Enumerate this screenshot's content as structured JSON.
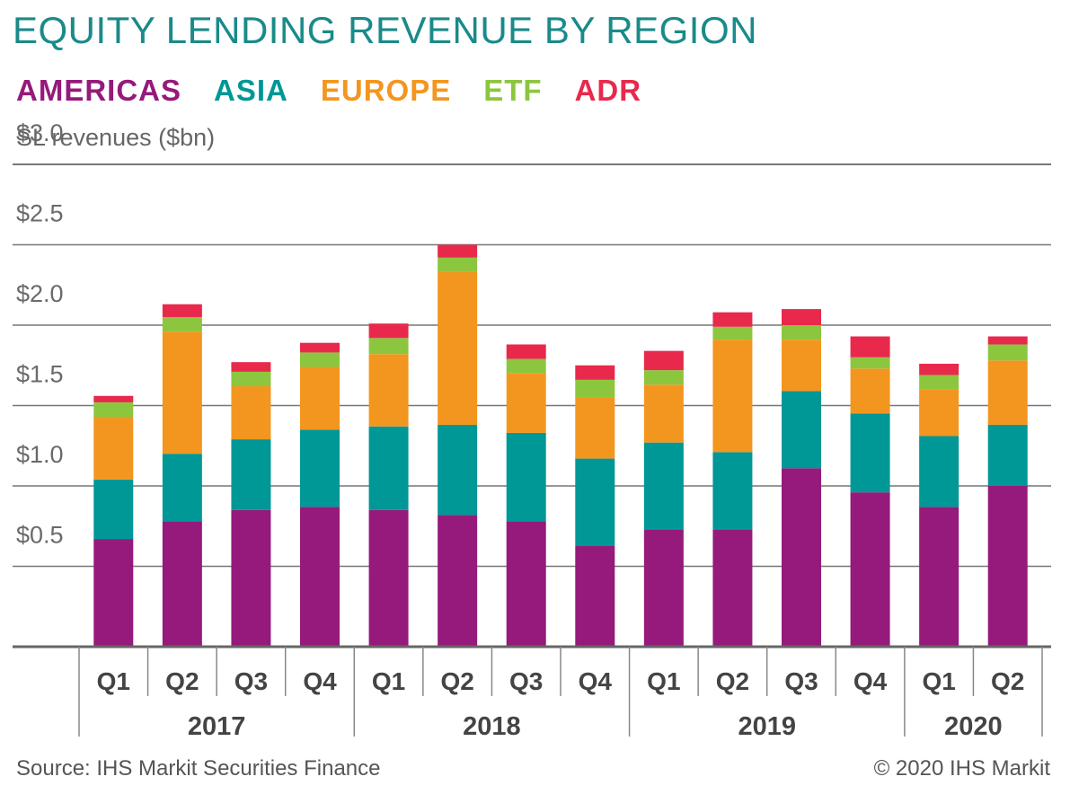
{
  "chart_data": {
    "type": "bar",
    "stacked": true,
    "title": "EQUITY LENDING REVENUE BY REGION",
    "ylabel": "SL revenues ($bn)",
    "ylim": [
      0,
      3.0
    ],
    "yticks": [
      "$0.5",
      "$1.0",
      "$1.5",
      "$2.0",
      "$2.5",
      "$3.0"
    ],
    "ytick_values": [
      0.5,
      1.0,
      1.5,
      2.0,
      2.5,
      3.0
    ],
    "grid": true,
    "legend_placement": "top-left",
    "categories": [
      "Q1",
      "Q2",
      "Q3",
      "Q4",
      "Q1",
      "Q2",
      "Q3",
      "Q4",
      "Q1",
      "Q2",
      "Q3",
      "Q4",
      "Q1",
      "Q2"
    ],
    "groups": [
      {
        "label": "2017",
        "count": 4
      },
      {
        "label": "2018",
        "count": 4
      },
      {
        "label": "2019",
        "count": 4
      },
      {
        "label": "2020",
        "count": 2
      }
    ],
    "series": [
      {
        "name": "AMERICAS",
        "color": "#951a7b",
        "values": [
          0.67,
          0.78,
          0.85,
          0.87,
          0.85,
          0.82,
          0.78,
          0.63,
          0.73,
          0.73,
          1.11,
          0.96,
          0.87,
          1.0
        ]
      },
      {
        "name": "ASIA",
        "color": "#009797",
        "values": [
          0.37,
          0.42,
          0.44,
          0.48,
          0.52,
          0.56,
          0.55,
          0.54,
          0.54,
          0.48,
          0.48,
          0.49,
          0.44,
          0.38
        ]
      },
      {
        "name": "EUROPE",
        "color": "#f3961f",
        "values": [
          0.39,
          0.76,
          0.33,
          0.39,
          0.45,
          0.95,
          0.37,
          0.38,
          0.36,
          0.7,
          0.32,
          0.28,
          0.29,
          0.4
        ]
      },
      {
        "name": "ETF",
        "color": "#8cc63f",
        "values": [
          0.09,
          0.09,
          0.09,
          0.09,
          0.1,
          0.09,
          0.09,
          0.11,
          0.09,
          0.08,
          0.09,
          0.07,
          0.09,
          0.1
        ]
      },
      {
        "name": "ADR",
        "color": "#e8294c",
        "values": [
          0.04,
          0.08,
          0.06,
          0.06,
          0.09,
          0.08,
          0.09,
          0.09,
          0.12,
          0.09,
          0.1,
          0.13,
          0.07,
          0.05
        ]
      }
    ]
  },
  "footer": {
    "source": "Source: IHS Markit Securities Finance",
    "copyright": "© 2020 IHS Markit"
  }
}
